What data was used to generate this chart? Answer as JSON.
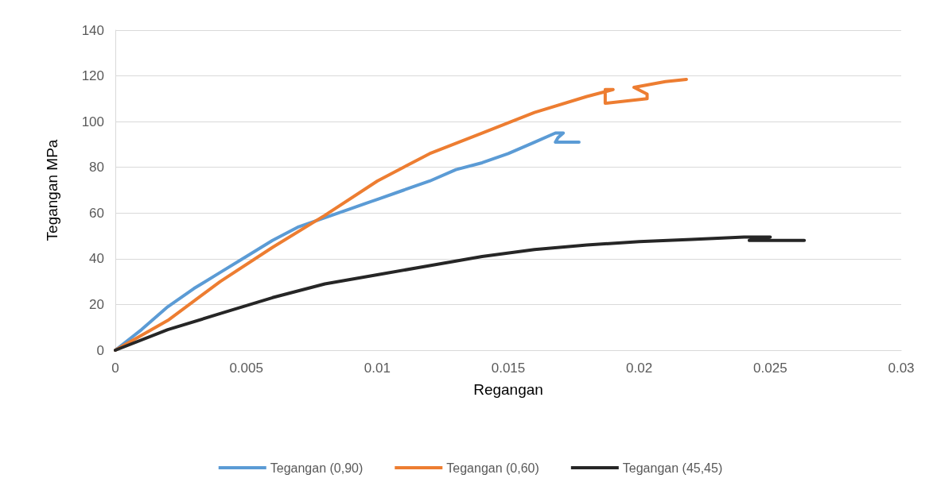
{
  "chart_data": {
    "type": "line",
    "xlabel": "Regangan",
    "ylabel": "Tegangan MPa",
    "xlim": [
      0,
      0.03
    ],
    "xticks": [
      0,
      0.005,
      0.01,
      0.015,
      0.02,
      0.025,
      0.03
    ],
    "ylim": [
      0,
      140
    ],
    "yticks": [
      0,
      20,
      40,
      60,
      80,
      100,
      120,
      140
    ],
    "grid": "y",
    "legend": "bottom",
    "marker": "none",
    "line_style": "solid",
    "series": [
      {
        "name": "Tegangan (0,90)",
        "color": "#5b9bd5",
        "x": [
          0,
          0.001,
          0.002,
          0.003,
          0.004,
          0.005,
          0.006,
          0.007,
          0.008,
          0.009,
          0.01,
          0.011,
          0.012,
          0.013,
          0.014,
          0.015,
          0.016,
          0.0168,
          0.0171,
          0.0169,
          0.0168,
          0.0177
        ],
        "values": [
          0,
          9,
          19,
          27,
          34,
          41,
          48,
          54,
          58,
          62,
          66,
          70,
          74,
          79,
          82,
          86,
          91,
          95,
          95,
          93,
          91,
          91
        ]
      },
      {
        "name": "Tegangan (0,60)",
        "color": "#ed7d31",
        "x": [
          0,
          0.002,
          0.004,
          0.006,
          0.008,
          0.01,
          0.012,
          0.014,
          0.016,
          0.018,
          0.019,
          0.0187,
          0.0187,
          0.0203,
          0.0203,
          0.0198,
          0.021,
          0.0218
        ],
        "values": [
          0,
          13,
          30,
          45,
          59,
          74,
          86,
          95,
          104,
          111,
          114,
          114,
          108,
          110,
          112,
          115,
          117.5,
          118.5
        ]
      },
      {
        "name": "Tegangan (45,45)",
        "color": "#262626",
        "x": [
          0,
          0.002,
          0.004,
          0.006,
          0.008,
          0.01,
          0.012,
          0.014,
          0.016,
          0.018,
          0.02,
          0.022,
          0.024,
          0.025,
          0.0242,
          0.0263
        ],
        "values": [
          0,
          9,
          16,
          23,
          29,
          33,
          37,
          41,
          44,
          46,
          47.5,
          48.5,
          49.5,
          49.5,
          48,
          48
        ]
      }
    ]
  }
}
